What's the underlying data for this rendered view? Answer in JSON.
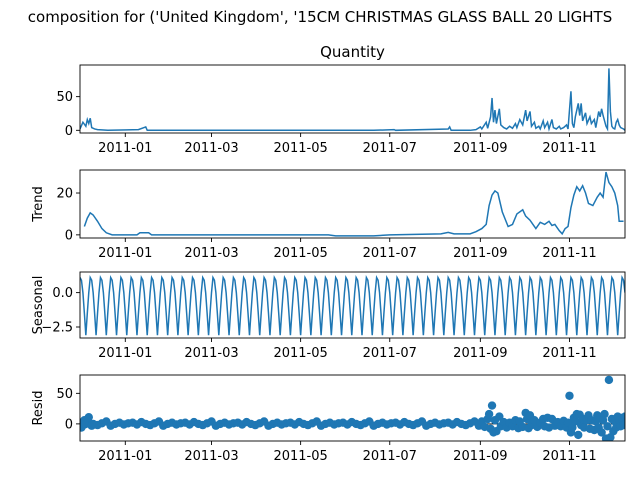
{
  "figure": {
    "suptitle": "composition for ('United Kingdom', '15CM CHRISTMAS GLASS BALL 20 LIGHTS"
  },
  "colors": {
    "line": "#1f77b4",
    "axis": "#000000",
    "background": "#ffffff"
  },
  "chart_data": [
    {
      "type": "line",
      "title": "Quantity",
      "xlabel": "",
      "ylabel": "",
      "xlim": [
        "2010-12-01",
        "2011-12-09"
      ],
      "ylim": [
        -4,
        97
      ],
      "grid": false,
      "yticks": [
        0,
        50
      ],
      "xticks": [
        "2011-01",
        "2011-03",
        "2011-05",
        "2011-07",
        "2011-09",
        "2011-11"
      ],
      "points": [
        [
          "2010-12-01",
          2
        ],
        [
          "2010-12-03",
          12
        ],
        [
          "2010-12-05",
          6
        ],
        [
          "2010-12-06",
          16
        ],
        [
          "2010-12-07",
          10
        ],
        [
          "2010-12-08",
          18
        ],
        [
          "2010-12-09",
          4
        ],
        [
          "2010-12-11",
          2
        ],
        [
          "2010-12-13",
          1
        ],
        [
          "2010-12-20",
          0
        ],
        [
          "2011-01-10",
          1
        ],
        [
          "2011-01-15",
          5
        ],
        [
          "2011-01-16",
          0
        ],
        [
          "2011-06-20",
          0
        ],
        [
          "2011-07-04",
          1
        ],
        [
          "2011-07-05",
          0
        ],
        [
          "2011-08-10",
          2
        ],
        [
          "2011-08-11",
          5
        ],
        [
          "2011-08-12",
          0
        ],
        [
          "2011-08-25",
          0
        ],
        [
          "2011-08-29",
          1
        ],
        [
          "2011-09-01",
          5
        ],
        [
          "2011-09-02",
          2
        ],
        [
          "2011-09-05",
          12
        ],
        [
          "2011-09-06",
          3
        ],
        [
          "2011-09-08",
          20
        ],
        [
          "2011-09-09",
          48
        ],
        [
          "2011-09-10",
          12
        ],
        [
          "2011-09-11",
          30
        ],
        [
          "2011-09-12",
          10
        ],
        [
          "2011-09-14",
          32
        ],
        [
          "2011-09-15",
          8
        ],
        [
          "2011-09-17",
          4
        ],
        [
          "2011-09-19",
          2
        ],
        [
          "2011-09-21",
          6
        ],
        [
          "2011-09-23",
          3
        ],
        [
          "2011-09-25",
          10
        ],
        [
          "2011-09-26",
          4
        ],
        [
          "2011-09-28",
          16
        ],
        [
          "2011-09-30",
          8
        ],
        [
          "2011-10-02",
          30
        ],
        [
          "2011-10-03",
          14
        ],
        [
          "2011-10-05",
          28
        ],
        [
          "2011-10-06",
          6
        ],
        [
          "2011-10-08",
          12
        ],
        [
          "2011-10-09",
          3
        ],
        [
          "2011-10-11",
          6
        ],
        [
          "2011-10-12",
          2
        ],
        [
          "2011-10-14",
          14
        ],
        [
          "2011-10-15",
          4
        ],
        [
          "2011-10-17",
          12
        ],
        [
          "2011-10-18",
          2
        ],
        [
          "2011-10-20",
          16
        ],
        [
          "2011-10-21",
          4
        ],
        [
          "2011-10-23",
          2
        ],
        [
          "2011-10-25",
          6
        ],
        [
          "2011-10-26",
          2
        ],
        [
          "2011-10-28",
          4
        ],
        [
          "2011-10-30",
          8
        ],
        [
          "2011-10-31",
          2
        ],
        [
          "2011-11-02",
          58
        ],
        [
          "2011-11-03",
          10
        ],
        [
          "2011-11-04",
          4
        ],
        [
          "2011-11-05",
          20
        ],
        [
          "2011-11-07",
          40
        ],
        [
          "2011-11-08",
          22
        ],
        [
          "2011-11-09",
          40
        ],
        [
          "2011-11-10",
          14
        ],
        [
          "2011-11-12",
          26
        ],
        [
          "2011-11-13",
          10
        ],
        [
          "2011-11-15",
          20
        ],
        [
          "2011-11-16",
          10
        ],
        [
          "2011-11-18",
          16
        ],
        [
          "2011-11-19",
          4
        ],
        [
          "2011-11-21",
          28
        ],
        [
          "2011-11-22",
          20
        ],
        [
          "2011-11-23",
          32
        ],
        [
          "2011-11-24",
          22
        ],
        [
          "2011-11-26",
          6
        ],
        [
          "2011-11-27",
          2
        ],
        [
          "2011-11-28",
          92
        ],
        [
          "2011-11-29",
          28
        ],
        [
          "2011-11-30",
          6
        ],
        [
          "2011-12-01",
          3
        ],
        [
          "2011-12-02",
          2
        ],
        [
          "2011-12-03",
          12
        ],
        [
          "2011-12-04",
          16
        ],
        [
          "2011-12-05",
          8
        ],
        [
          "2011-12-06",
          4
        ],
        [
          "2011-12-08",
          2
        ],
        [
          "2011-12-09",
          0
        ]
      ]
    },
    {
      "type": "line",
      "title": "",
      "xlabel": "",
      "ylabel": "Trend",
      "xlim": [
        "2010-12-01",
        "2011-12-09"
      ],
      "ylim": [
        -1.5,
        31
      ],
      "grid": false,
      "yticks": [
        0,
        20
      ],
      "xticks": [
        "2011-01",
        "2011-03",
        "2011-05",
        "2011-07",
        "2011-09",
        "2011-11"
      ],
      "points": [
        [
          "2010-12-04",
          4
        ],
        [
          "2010-12-06",
          8
        ],
        [
          "2010-12-08",
          10.5
        ],
        [
          "2010-12-10",
          9.5
        ],
        [
          "2010-12-13",
          6.5
        ],
        [
          "2010-12-16",
          3
        ],
        [
          "2010-12-19",
          1
        ],
        [
          "2010-12-23",
          0
        ],
        [
          "2011-01-09",
          0
        ],
        [
          "2011-01-11",
          1
        ],
        [
          "2011-01-17",
          1
        ],
        [
          "2011-01-19",
          0
        ],
        [
          "2011-05-20",
          0
        ],
        [
          "2011-05-25",
          -0.5
        ],
        [
          "2011-06-20",
          -0.5
        ],
        [
          "2011-07-01",
          0
        ],
        [
          "2011-08-05",
          0.5
        ],
        [
          "2011-08-10",
          1.2
        ],
        [
          "2011-08-14",
          0.5
        ],
        [
          "2011-08-25",
          0.5
        ],
        [
          "2011-08-29",
          1.5
        ],
        [
          "2011-09-02",
          3
        ],
        [
          "2011-09-05",
          5
        ],
        [
          "2011-09-07",
          14
        ],
        [
          "2011-09-09",
          19
        ],
        [
          "2011-09-11",
          21
        ],
        [
          "2011-09-13",
          20
        ],
        [
          "2011-09-16",
          11
        ],
        [
          "2011-09-20",
          4
        ],
        [
          "2011-09-23",
          5
        ],
        [
          "2011-09-26",
          10
        ],
        [
          "2011-09-28",
          11
        ],
        [
          "2011-09-30",
          12
        ],
        [
          "2011-10-02",
          9
        ],
        [
          "2011-10-05",
          7
        ],
        [
          "2011-10-07",
          5
        ],
        [
          "2011-10-09",
          3
        ],
        [
          "2011-10-12",
          6
        ],
        [
          "2011-10-15",
          5
        ],
        [
          "2011-10-18",
          6.5
        ],
        [
          "2011-10-20",
          4.5
        ],
        [
          "2011-10-22",
          5
        ],
        [
          "2011-10-25",
          2
        ],
        [
          "2011-10-27",
          0.5
        ],
        [
          "2011-10-29",
          3
        ],
        [
          "2011-10-31",
          4
        ],
        [
          "2011-11-02",
          13
        ],
        [
          "2011-11-04",
          19
        ],
        [
          "2011-11-06",
          23
        ],
        [
          "2011-11-08",
          21
        ],
        [
          "2011-11-10",
          23.5
        ],
        [
          "2011-11-12",
          20
        ],
        [
          "2011-11-14",
          15
        ],
        [
          "2011-11-17",
          14
        ],
        [
          "2011-11-20",
          18
        ],
        [
          "2011-11-22",
          20
        ],
        [
          "2011-11-24",
          18
        ],
        [
          "2011-11-26",
          30
        ],
        [
          "2011-11-28",
          25
        ],
        [
          "2011-11-30",
          23
        ],
        [
          "2011-12-02",
          20
        ],
        [
          "2011-12-04",
          14
        ],
        [
          "2011-12-05",
          6.5
        ],
        [
          "2011-12-08",
          6.5
        ]
      ]
    },
    {
      "type": "line",
      "title": "",
      "xlabel": "",
      "ylabel": "Seasonal",
      "xlim": [
        "2010-12-01",
        "2011-12-09"
      ],
      "ylim": [
        -3.3,
        1.5
      ],
      "grid": false,
      "yticks": [
        0.0,
        -2.5
      ],
      "ytick_labels": [
        "0.0",
        "−2.5"
      ],
      "xticks": [
        "2011-01",
        "2011-03",
        "2011-05",
        "2011-07",
        "2011-09",
        "2011-11"
      ],
      "period_days": 7,
      "start": "2010-12-01",
      "end": "2011-12-09",
      "weekly_pattern": [
        1.1,
        0.9,
        0.0,
        -1.5,
        -3.1,
        -1.5,
        0.0
      ]
    },
    {
      "type": "scatter",
      "title": "",
      "xlabel": "",
      "ylabel": "Resid",
      "xlim": [
        "2010-12-01",
        "2011-12-09"
      ],
      "ylim": [
        -28,
        80
      ],
      "grid": false,
      "yticks": [
        0,
        50
      ],
      "xticks": [
        "2011-01",
        "2011-03",
        "2011-05",
        "2011-07",
        "2011-09",
        "2011-11"
      ],
      "baseline_start": "2010-12-01",
      "baseline_end": "2011-08-31",
      "baseline_step_days": 3,
      "baseline_pattern": [
        2,
        -1,
        3,
        0,
        -2,
        1,
        4,
        -3,
        0,
        2,
        -1,
        1
      ],
      "points": [
        [
          "2010-12-02",
          -6
        ],
        [
          "2010-12-04",
          6
        ],
        [
          "2010-12-05",
          0
        ],
        [
          "2010-12-07",
          11
        ],
        [
          "2010-12-09",
          -3
        ],
        [
          "2011-09-02",
          4
        ],
        [
          "2011-09-04",
          -5
        ],
        [
          "2011-09-06",
          8
        ],
        [
          "2011-09-07",
          16
        ],
        [
          "2011-09-08",
          -8
        ],
        [
          "2011-09-09",
          30
        ],
        [
          "2011-09-10",
          -14
        ],
        [
          "2011-09-11",
          6
        ],
        [
          "2011-09-12",
          -12
        ],
        [
          "2011-09-14",
          12
        ],
        [
          "2011-09-15",
          -4
        ],
        [
          "2011-09-17",
          3
        ],
        [
          "2011-09-19",
          -6
        ],
        [
          "2011-09-21",
          2
        ],
        [
          "2011-09-23",
          -4
        ],
        [
          "2011-09-25",
          6
        ],
        [
          "2011-09-27",
          -7
        ],
        [
          "2011-09-28",
          4
        ],
        [
          "2011-09-30",
          -5
        ],
        [
          "2011-10-02",
          18
        ],
        [
          "2011-10-03",
          8
        ],
        [
          "2011-10-04",
          -7
        ],
        [
          "2011-10-05",
          14
        ],
        [
          "2011-10-06",
          -2
        ],
        [
          "2011-10-08",
          6
        ],
        [
          "2011-10-10",
          -5
        ],
        [
          "2011-10-12",
          2
        ],
        [
          "2011-10-14",
          8
        ],
        [
          "2011-10-15",
          -4
        ],
        [
          "2011-10-17",
          10
        ],
        [
          "2011-10-18",
          -6
        ],
        [
          "2011-10-20",
          8
        ],
        [
          "2011-10-22",
          -3
        ],
        [
          "2011-10-24",
          3
        ],
        [
          "2011-10-26",
          -4
        ],
        [
          "2011-10-28",
          5
        ],
        [
          "2011-10-30",
          -6
        ],
        [
          "2011-10-31",
          2
        ],
        [
          "2011-11-01",
          46
        ],
        [
          "2011-11-02",
          -14
        ],
        [
          "2011-11-03",
          -6
        ],
        [
          "2011-11-04",
          10
        ],
        [
          "2011-11-05",
          4
        ],
        [
          "2011-11-06",
          16
        ],
        [
          "2011-11-07",
          -18
        ],
        [
          "2011-11-08",
          15
        ],
        [
          "2011-11-09",
          -2
        ],
        [
          "2011-11-10",
          8
        ],
        [
          "2011-11-11",
          -6
        ],
        [
          "2011-11-13",
          6
        ],
        [
          "2011-11-14",
          14
        ],
        [
          "2011-11-15",
          -8
        ],
        [
          "2011-11-16",
          6
        ],
        [
          "2011-11-18",
          -10
        ],
        [
          "2011-11-19",
          4
        ],
        [
          "2011-11-20",
          14
        ],
        [
          "2011-11-21",
          -6
        ],
        [
          "2011-11-22",
          10
        ],
        [
          "2011-11-23",
          -14
        ],
        [
          "2011-11-24",
          6
        ],
        [
          "2011-11-25",
          16
        ],
        [
          "2011-11-26",
          -24
        ],
        [
          "2011-11-27",
          -4
        ],
        [
          "2011-11-28",
          72
        ],
        [
          "2011-11-29",
          -22
        ],
        [
          "2011-11-30",
          8
        ],
        [
          "2011-12-01",
          -12
        ],
        [
          "2011-12-02",
          4
        ],
        [
          "2011-12-03",
          -6
        ],
        [
          "2011-12-04",
          12
        ],
        [
          "2011-12-05",
          6
        ],
        [
          "2011-12-06",
          -4
        ],
        [
          "2011-12-07",
          10
        ],
        [
          "2011-12-08",
          -2
        ],
        [
          "2011-12-09",
          12
        ]
      ]
    }
  ]
}
